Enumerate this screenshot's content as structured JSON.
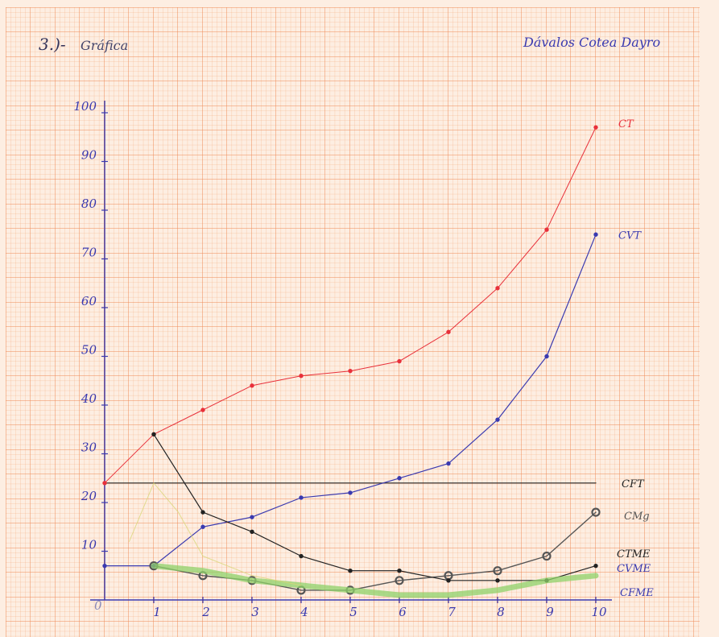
{
  "header": {
    "number": "3.)-",
    "title": "Gráfica",
    "author": "Dávalos Cotea Dayro"
  },
  "chart_data": {
    "type": "line",
    "xlim": [
      0,
      10
    ],
    "ylim": [
      0,
      100
    ],
    "x_ticks": [
      1,
      2,
      3,
      4,
      5,
      6,
      7,
      8,
      9,
      10
    ],
    "y_ticks": [
      10,
      20,
      30,
      40,
      50,
      60,
      70,
      80,
      90,
      100
    ],
    "origin_label": "0",
    "grid": true,
    "legend": "inline labels at right end of each line",
    "series": [
      {
        "name": "CFT",
        "color": "#222222",
        "x": [
          0,
          10
        ],
        "y": [
          24,
          24
        ]
      },
      {
        "name": "CT",
        "color": "#e8303a",
        "x": [
          0,
          1,
          2,
          3,
          4,
          5,
          6,
          7,
          8,
          9,
          10
        ],
        "y": [
          24,
          34,
          39,
          44,
          46,
          47,
          49,
          55,
          64,
          76,
          97
        ]
      },
      {
        "name": "CVT",
        "color": "#3a3ab0",
        "x": [
          0,
          1,
          2,
          3,
          4,
          5,
          6,
          7,
          8,
          9,
          10
        ],
        "y": [
          7,
          7,
          15,
          17,
          21,
          22,
          25,
          28,
          37,
          50,
          75
        ]
      },
      {
        "name": "CMg",
        "color": "#555555",
        "x": [
          1,
          2,
          3,
          4,
          5,
          6,
          7,
          8,
          9,
          10
        ],
        "y": [
          7,
          5,
          4,
          2,
          2,
          4,
          5,
          6,
          9,
          18
        ]
      },
      {
        "name": "CTME",
        "color": "#222222",
        "x": [
          1,
          2,
          3,
          4,
          5,
          6,
          7,
          8,
          9,
          10
        ],
        "y": [
          34,
          18,
          14,
          9,
          6,
          6,
          4,
          4,
          4,
          7
        ]
      },
      {
        "name": "CVME",
        "color": "#8fd16a",
        "x": [
          1,
          2,
          3,
          4,
          5,
          6,
          7,
          8,
          9,
          10
        ],
        "y": [
          7,
          6,
          4,
          3,
          2,
          1,
          1,
          2,
          4,
          5
        ]
      },
      {
        "name": "CFME",
        "color": "#d9d77a",
        "x": [
          0.5,
          1,
          1.5,
          2,
          3,
          4
        ],
        "y": [
          12,
          24,
          18,
          9,
          5,
          3
        ]
      }
    ]
  }
}
